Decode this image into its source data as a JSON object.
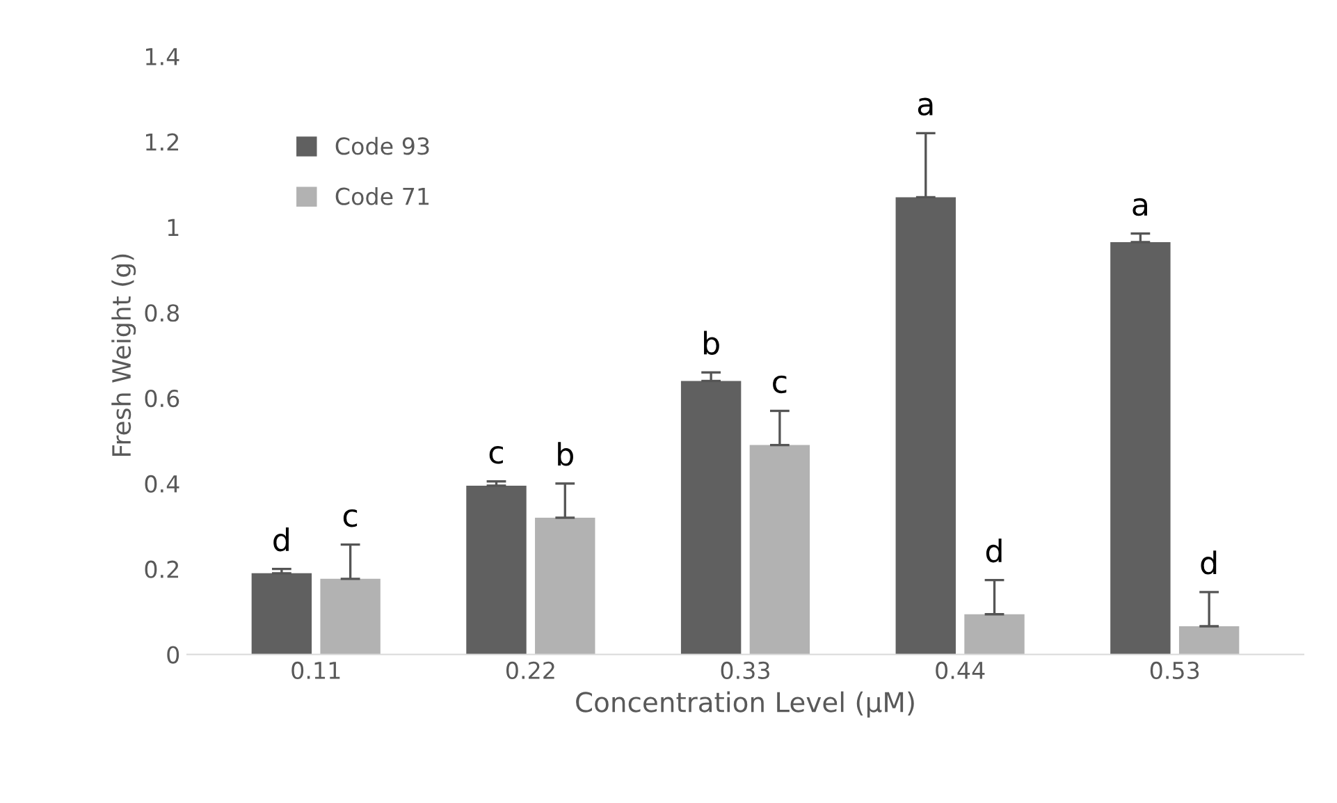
{
  "chart_data": {
    "type": "bar",
    "xlabel": "Concentration Level (µM)",
    "ylabel": "Fresh Weight (g)",
    "categories": [
      "0.11",
      "0.22",
      "0.33",
      "0.44",
      "0.53"
    ],
    "series": [
      {
        "name": "Code 93",
        "color": "#606060",
        "values": [
          0.19,
          0.395,
          0.64,
          1.07,
          0.965
        ],
        "errors": [
          0.01,
          0.01,
          0.02,
          0.15,
          0.02
        ],
        "value_labels": [
          "d",
          "c",
          "b",
          "a",
          "a"
        ]
      },
      {
        "name": "Code 71",
        "color": "#b2b2b2",
        "values": [
          0.177,
          0.32,
          0.49,
          0.094,
          0.066
        ],
        "errors": [
          0.08,
          0.08,
          0.08,
          0.08,
          0.08
        ],
        "value_labels": [
          "c",
          "b",
          "c",
          "d",
          "d"
        ]
      }
    ],
    "ylim": [
      0,
      1.4
    ],
    "yticks": [
      0,
      0.2,
      0.4,
      0.6,
      0.8,
      1,
      1.2,
      1.4
    ],
    "grid": false,
    "legend": "top left"
  }
}
